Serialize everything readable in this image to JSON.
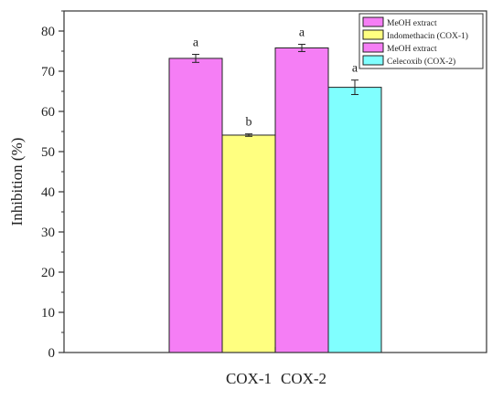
{
  "chart_data": {
    "type": "bar",
    "ylabel": "Inhibition (%)",
    "ylim": [
      0,
      85
    ],
    "yticks": [
      0,
      10,
      20,
      30,
      40,
      50,
      60,
      70,
      80
    ],
    "category_labels": [
      "COX-1",
      "COX-2"
    ],
    "bars": [
      {
        "legend": "MeOH extract",
        "color": "#f57ef5",
        "value": 73.2,
        "error": 1.0,
        "letter": "a"
      },
      {
        "legend": "Indomethacin (COX-1)",
        "color": "#ffff80",
        "value": 54.1,
        "error": 0.3,
        "letter": "b"
      },
      {
        "legend": "MeOH extract",
        "color": "#f57ef5",
        "value": 75.8,
        "error": 0.9,
        "letter": "a"
      },
      {
        "legend": "Celecoxib (COX-2)",
        "color": "#80ffff",
        "value": 66.0,
        "error": 1.8,
        "letter": "a"
      }
    ],
    "legend_position": "top-right"
  }
}
